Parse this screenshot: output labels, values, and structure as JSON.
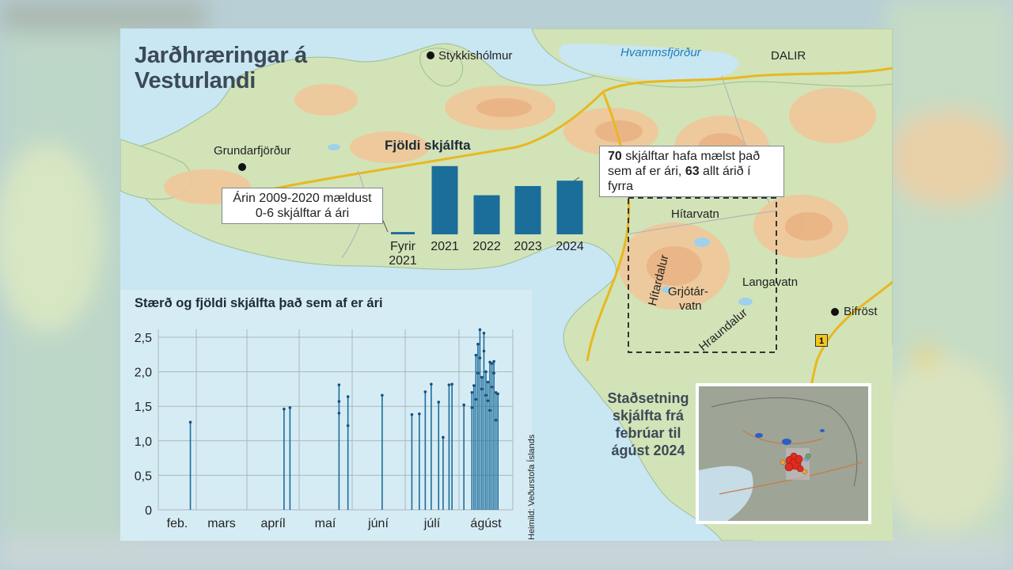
{
  "title": "Jarðhræringar á Vesturlandi",
  "places": {
    "stykkisholmur": "Stykkishólmur",
    "hvammsfjordur": "Hvammsfjörður",
    "dalir": "DALIR",
    "grundarfjordur": "Grundarfjörður",
    "hitarvatn": "Hítarvatn",
    "hitardalur": "Hítardalur",
    "grjotarvatn_1": "Grjótár-",
    "grjotarvatn_2": "vatn",
    "langavatn": "Langavatn",
    "hraundalur": "Hraundalur",
    "bifrost": "Bifröst",
    "road_number": "1"
  },
  "callouts": {
    "before_2021_line1": "Árin 2009-2020 mældust",
    "before_2021_line2": "0-6 skjálftar á ári",
    "current_year_bold_1": "70",
    "current_year_text_1": " skjálftar hafa mælst það",
    "current_year_text_2": "sem af er ári, ",
    "current_year_bold_2": "63",
    "current_year_text_3": " allt árið í fyrra"
  },
  "location_inset": {
    "title_line1": "Staðsetning",
    "title_line2": "skjálfta frá",
    "title_line3": "febrúar til",
    "title_line4": "ágúst 2024"
  },
  "source": "Heimild: Veðurstofa Íslands",
  "colors": {
    "bar": "#1b6d9a",
    "sea": "#c9e6f3",
    "land": "#cfe0b6",
    "highland": "#f0c79a",
    "road": "#e8b820"
  },
  "chart_data": [
    {
      "type": "bar",
      "title": "Fjöldi skjálfta",
      "categories": [
        "Fyrir 2021",
        "2021",
        "2022",
        "2023",
        "2024"
      ],
      "category_lines": [
        [
          "Fyrir",
          "2021"
        ],
        [
          "2021"
        ],
        [
          "2022"
        ],
        [
          "2023"
        ],
        [
          "2024"
        ]
      ],
      "values": [
        3,
        89,
        51,
        63,
        70
      ],
      "ylim": [
        0,
        95
      ]
    },
    {
      "type": "scatter",
      "title": "Stærð og fjöldi skjálfta það sem af er ári",
      "xlabel": "",
      "ylabel": "",
      "ylim": [
        0,
        2.6
      ],
      "y_ticks": [
        0,
        0.5,
        1.0,
        1.5,
        2.0,
        2.5
      ],
      "y_tick_labels": [
        "0",
        "0,5",
        "1,0",
        "1,5",
        "2,0",
        "2,5"
      ],
      "x_months": [
        "feb.",
        "mars",
        "apríl",
        "maí",
        "júní",
        "júlí",
        "ágúst"
      ],
      "x_unit": "day index from start of February",
      "xlim": [
        0,
        205
      ],
      "grid": true,
      "points": [
        {
          "x": 12,
          "y": 1.27
        },
        {
          "x": 75,
          "y": 1.46
        },
        {
          "x": 79,
          "y": 1.48
        },
        {
          "x": 112,
          "y": 1.81
        },
        {
          "x": 112,
          "y": 1.57
        },
        {
          "x": 112,
          "y": 1.4
        },
        {
          "x": 118,
          "y": 1.64
        },
        {
          "x": 118,
          "y": 1.22
        },
        {
          "x": 141,
          "y": 1.66
        },
        {
          "x": 161,
          "y": 1.38
        },
        {
          "x": 166,
          "y": 1.39
        },
        {
          "x": 170,
          "y": 1.71
        },
        {
          "x": 174,
          "y": 1.82
        },
        {
          "x": 179,
          "y": 1.56
        },
        {
          "x": 182,
          "y": 1.05
        },
        {
          "x": 186,
          "y": 1.81
        },
        {
          "x": 188,
          "y": 1.82
        },
        {
          "x": 196,
          "y": 1.52
        },
        {
          "x": 200,
          "y": 1.7
        },
        {
          "x": 200,
          "y": 1.48
        },
        {
          "x": 201,
          "y": 1.8
        },
        {
          "x": 202,
          "y": 2.24
        },
        {
          "x": 202,
          "y": 1.6
        },
        {
          "x": 203,
          "y": 1.98
        },
        {
          "x": 203,
          "y": 2.4
        },
        {
          "x": 204,
          "y": 2.61
        },
        {
          "x": 204,
          "y": 2.2
        },
        {
          "x": 205,
          "y": 1.92
        },
        {
          "x": 205,
          "y": 1.75
        },
        {
          "x": 206,
          "y": 2.56
        },
        {
          "x": 206,
          "y": 2.3
        },
        {
          "x": 207,
          "y": 2.0
        },
        {
          "x": 207,
          "y": 1.66
        },
        {
          "x": 208,
          "y": 1.85
        },
        {
          "x": 208,
          "y": 1.58
        },
        {
          "x": 209,
          "y": 2.14
        },
        {
          "x": 209,
          "y": 1.44
        },
        {
          "x": 210,
          "y": 2.12
        },
        {
          "x": 210,
          "y": 1.78
        },
        {
          "x": 211,
          "y": 2.15
        },
        {
          "x": 211,
          "y": 1.98
        },
        {
          "x": 212,
          "y": 1.7
        },
        {
          "x": 212,
          "y": 1.3
        },
        {
          "x": 213,
          "y": 1.68
        }
      ]
    }
  ]
}
